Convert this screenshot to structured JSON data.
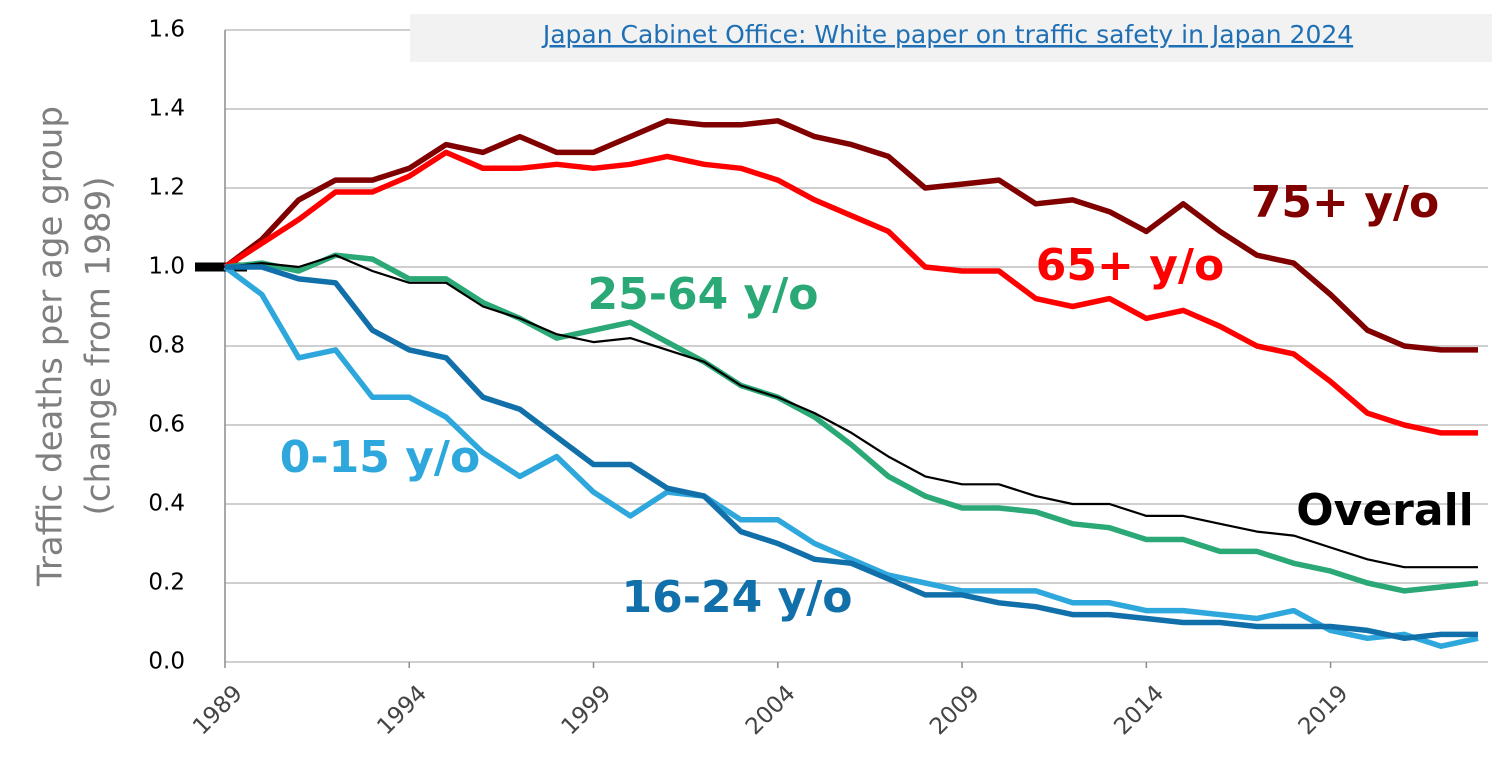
{
  "chart_data": {
    "type": "line",
    "source": "Japan Cabinet Office: White paper on traffic safety in Japan 2024",
    "ylabel": [
      "Traffic deaths per age group",
      "(change from 1989)"
    ],
    "x": [
      1989,
      1990,
      1991,
      1992,
      1993,
      1994,
      1995,
      1996,
      1997,
      1998,
      1999,
      2000,
      2001,
      2002,
      2003,
      2004,
      2005,
      2006,
      2007,
      2008,
      2009,
      2010,
      2011,
      2012,
      2013,
      2014,
      2015,
      2016,
      2017,
      2018,
      2019,
      2020,
      2021,
      2022,
      2023
    ],
    "xlim": [
      1989,
      2023
    ],
    "xticks": [
      1989,
      1994,
      1999,
      2004,
      2009,
      2014,
      2019
    ],
    "ylim": [
      0,
      1.6
    ],
    "yticks": [
      {
        "value": 0,
        "label": "0.0"
      },
      0.2,
      0.4,
      0.6,
      0.8,
      {
        "value": 1,
        "label": "1.0"
      },
      1.2,
      1.4,
      1.6
    ],
    "grid": true,
    "series": [
      {
        "name": "75+ y/o",
        "color": "#800000",
        "values": [
          1.0,
          1.07,
          1.17,
          1.22,
          1.22,
          1.25,
          1.31,
          1.29,
          1.33,
          1.29,
          1.29,
          1.33,
          1.37,
          1.36,
          1.36,
          1.37,
          1.33,
          1.31,
          1.28,
          1.2,
          1.21,
          1.22,
          1.16,
          1.17,
          1.14,
          1.09,
          1.16,
          1.09,
          1.03,
          1.01,
          0.93,
          0.84,
          0.8,
          0.79,
          0.79
        ]
      },
      {
        "name": "65+ y/o",
        "color": "#ff0000",
        "values": [
          1.0,
          1.06,
          1.12,
          1.19,
          1.19,
          1.23,
          1.29,
          1.25,
          1.25,
          1.26,
          1.25,
          1.26,
          1.28,
          1.26,
          1.25,
          1.22,
          1.17,
          1.13,
          1.09,
          1.0,
          0.99,
          0.99,
          0.92,
          0.9,
          0.92,
          0.87,
          0.89,
          0.85,
          0.8,
          0.78,
          0.71,
          0.63,
          0.6,
          0.58,
          0.58
        ]
      },
      {
        "name": "25-64 y/o",
        "color": "#2aa876",
        "values": [
          1.0,
          1.01,
          0.99,
          1.03,
          1.02,
          0.97,
          0.97,
          0.91,
          0.87,
          0.82,
          0.84,
          0.86,
          0.81,
          0.76,
          0.7,
          0.67,
          0.62,
          0.55,
          0.47,
          0.42,
          0.39,
          0.39,
          0.38,
          0.35,
          0.34,
          0.31,
          0.31,
          0.28,
          0.28,
          0.25,
          0.23,
          0.2,
          0.18,
          0.19,
          0.2
        ]
      },
      {
        "name": "Overall",
        "color": "#000000",
        "values": [
          1.0,
          1.01,
          1.0,
          1.03,
          0.99,
          0.96,
          0.96,
          0.9,
          0.87,
          0.83,
          0.81,
          0.82,
          0.79,
          0.76,
          0.7,
          0.67,
          0.63,
          0.58,
          0.52,
          0.47,
          0.45,
          0.45,
          0.42,
          0.4,
          0.4,
          0.37,
          0.37,
          0.35,
          0.33,
          0.32,
          0.29,
          0.26,
          0.24,
          0.24,
          0.24
        ]
      },
      {
        "name": "0-15 y/o",
        "color": "#2ea8dc",
        "values": [
          1.0,
          0.93,
          0.77,
          0.79,
          0.67,
          0.67,
          0.62,
          0.53,
          0.47,
          0.52,
          0.43,
          0.37,
          0.43,
          0.42,
          0.36,
          0.36,
          0.3,
          0.26,
          0.22,
          0.2,
          0.18,
          0.18,
          0.18,
          0.15,
          0.15,
          0.13,
          0.13,
          0.12,
          0.11,
          0.13,
          0.08,
          0.06,
          0.07,
          0.04,
          0.06
        ]
      },
      {
        "name": "16-24 y/o",
        "color": "#1170aa",
        "values": [
          1.0,
          1.0,
          0.97,
          0.96,
          0.84,
          0.79,
          0.77,
          0.67,
          0.64,
          0.57,
          0.5,
          0.5,
          0.44,
          0.42,
          0.33,
          0.3,
          0.26,
          0.25,
          0.21,
          0.17,
          0.17,
          0.15,
          0.14,
          0.12,
          0.12,
          0.11,
          0.1,
          0.1,
          0.09,
          0.09,
          0.09,
          0.08,
          0.06,
          0.07,
          0.07
        ]
      }
    ]
  }
}
